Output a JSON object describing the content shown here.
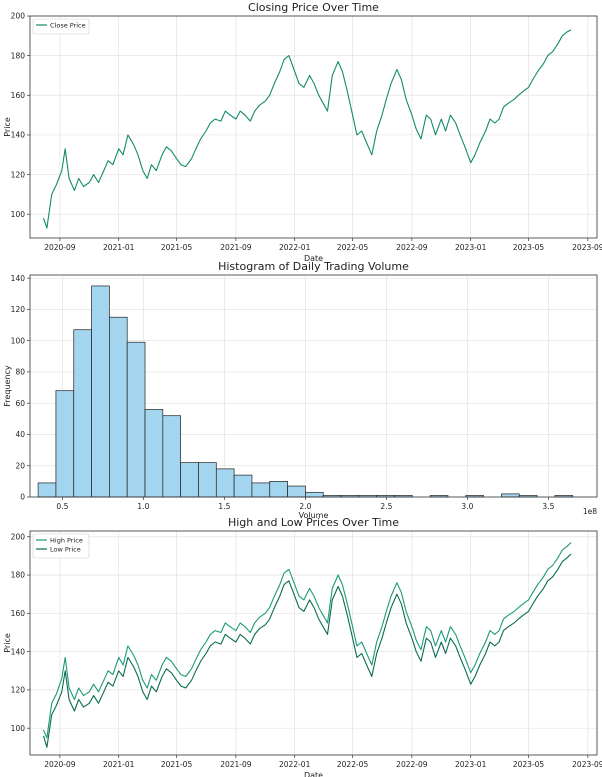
{
  "chart_data": [
    {
      "type": "line",
      "title": "Closing Price Over Time",
      "xlabel": "Date",
      "ylabel": "Price",
      "grid": true,
      "legend_placement": "top-left",
      "x_ticks": [
        "2020-09",
        "2021-01",
        "2021-05",
        "2021-09",
        "2022-01",
        "2022-05",
        "2022-09",
        "2023-01",
        "2023-05",
        "2023-09"
      ],
      "y_ticks": [
        100,
        120,
        140,
        160,
        180,
        200
      ],
      "xlim": [
        "2020-07-01",
        "2023-09-20"
      ],
      "ylim": [
        88,
        200
      ],
      "series": [
        {
          "name": "Close Price",
          "color": "#128a6c",
          "x": [
            "2020-07-29",
            "2020-08-05",
            "2020-08-15",
            "2020-08-25",
            "2020-09-05",
            "2020-09-12",
            "2020-09-20",
            "2020-10-01",
            "2020-10-10",
            "2020-10-20",
            "2020-11-01",
            "2020-11-10",
            "2020-11-20",
            "2020-12-01",
            "2020-12-10",
            "2020-12-20",
            "2021-01-01",
            "2021-01-10",
            "2021-01-20",
            "2021-02-01",
            "2021-02-10",
            "2021-02-20",
            "2021-03-01",
            "2021-03-10",
            "2021-03-20",
            "2021-04-01",
            "2021-04-10",
            "2021-04-20",
            "2021-05-01",
            "2021-05-10",
            "2021-05-20",
            "2021-06-01",
            "2021-06-10",
            "2021-06-20",
            "2021-07-01",
            "2021-07-10",
            "2021-07-20",
            "2021-08-01",
            "2021-08-10",
            "2021-08-20",
            "2021-09-01",
            "2021-09-10",
            "2021-09-20",
            "2021-10-01",
            "2021-10-10",
            "2021-10-20",
            "2021-11-01",
            "2021-11-10",
            "2021-11-20",
            "2021-12-01",
            "2021-12-10",
            "2021-12-20",
            "2022-01-01",
            "2022-01-10",
            "2022-01-20",
            "2022-02-01",
            "2022-02-10",
            "2022-02-20",
            "2022-03-01",
            "2022-03-10",
            "2022-03-20",
            "2022-04-01",
            "2022-04-10",
            "2022-04-20",
            "2022-05-01",
            "2022-05-10",
            "2022-05-20",
            "2022-06-01",
            "2022-06-10",
            "2022-06-20",
            "2022-07-01",
            "2022-07-10",
            "2022-07-20",
            "2022-08-01",
            "2022-08-10",
            "2022-08-20",
            "2022-09-01",
            "2022-09-10",
            "2022-09-20",
            "2022-10-01",
            "2022-10-10",
            "2022-10-20",
            "2022-11-01",
            "2022-11-10",
            "2022-11-20",
            "2022-12-01",
            "2022-12-10",
            "2022-12-20",
            "2023-01-01",
            "2023-01-10",
            "2023-01-20",
            "2023-02-01",
            "2023-02-10",
            "2023-02-20",
            "2023-03-01",
            "2023-03-10",
            "2023-03-20",
            "2023-04-01",
            "2023-04-10",
            "2023-04-20",
            "2023-05-01",
            "2023-05-10",
            "2023-05-20",
            "2023-06-01",
            "2023-06-10",
            "2023-06-20",
            "2023-07-01",
            "2023-07-10",
            "2023-07-20",
            "2023-07-28"
          ],
          "y": [
            98,
            93,
            110,
            115,
            122,
            133,
            118,
            112,
            118,
            114,
            116,
            120,
            116,
            122,
            127,
            125,
            133,
            130,
            140,
            135,
            130,
            122,
            118,
            125,
            122,
            130,
            134,
            132,
            128,
            125,
            124,
            128,
            133,
            138,
            142,
            146,
            148,
            147,
            152,
            150,
            148,
            152,
            150,
            147,
            152,
            155,
            157,
            160,
            166,
            172,
            178,
            180,
            172,
            166,
            164,
            170,
            166,
            160,
            156,
            152,
            170,
            177,
            172,
            162,
            150,
            140,
            142,
            135,
            130,
            142,
            150,
            158,
            166,
            173,
            168,
            158,
            150,
            143,
            138,
            150,
            148,
            140,
            148,
            142,
            150,
            146,
            140,
            134,
            126,
            130,
            136,
            142,
            148,
            146,
            148,
            154,
            156,
            158,
            160,
            162,
            164,
            168,
            172,
            176,
            180,
            182,
            186,
            190,
            192,
            193
          ]
        }
      ]
    },
    {
      "type": "bar",
      "title": "Histogram of Daily Trading Volume",
      "xlabel": "Volume",
      "ylabel": "Frequency",
      "x_offset_label": "1e8",
      "grid": true,
      "x_ticks": [
        "0.5",
        "1.0",
        "1.5",
        "2.0",
        "2.5",
        "3.0",
        "3.5"
      ],
      "y_ticks": [
        0,
        20,
        40,
        60,
        80,
        100,
        120,
        140
      ],
      "xlim": [
        0.3,
        3.8
      ],
      "ylim": [
        0,
        142
      ],
      "bar_color": "#a3d5ee",
      "bin_edges": [
        0.35,
        0.46,
        0.57,
        0.68,
        0.79,
        0.9,
        1.01,
        1.12,
        1.23,
        1.34,
        1.45,
        1.56,
        1.67,
        1.78,
        1.89,
        2.0,
        2.11,
        2.22,
        2.33,
        2.44,
        2.55,
        2.66,
        2.77,
        2.88,
        2.99,
        3.1,
        3.21,
        3.32,
        3.43,
        3.54,
        3.65
      ],
      "values": [
        9,
        68,
        107,
        135,
        115,
        99,
        56,
        52,
        22,
        22,
        18,
        14,
        9,
        10,
        7,
        3,
        1,
        1,
        1,
        1,
        1,
        0,
        1,
        0,
        1,
        0,
        2,
        1,
        0,
        1
      ]
    },
    {
      "type": "line",
      "title": "High and Low Prices Over Time",
      "xlabel": "Date",
      "ylabel": "Price",
      "grid": true,
      "legend_placement": "top-left",
      "x_ticks": [
        "2020-09",
        "2021-01",
        "2021-05",
        "2021-09",
        "2022-01",
        "2022-05",
        "2022-09",
        "2023-01",
        "2023-05",
        "2023-09"
      ],
      "y_ticks": [
        100,
        120,
        140,
        160,
        180,
        200
      ],
      "xlim": [
        "2020-07-01",
        "2023-09-20"
      ],
      "ylim": [
        86,
        203
      ],
      "series": [
        {
          "name": "High Price",
          "color": "#1a9a78",
          "x": [
            "2020-07-29",
            "2020-08-05",
            "2020-08-15",
            "2020-08-25",
            "2020-09-05",
            "2020-09-12",
            "2020-09-20",
            "2020-10-01",
            "2020-10-10",
            "2020-10-20",
            "2020-11-01",
            "2020-11-10",
            "2020-11-20",
            "2020-12-01",
            "2020-12-10",
            "2020-12-20",
            "2021-01-01",
            "2021-01-10",
            "2021-01-20",
            "2021-02-01",
            "2021-02-10",
            "2021-02-20",
            "2021-03-01",
            "2021-03-10",
            "2021-03-20",
            "2021-04-01",
            "2021-04-10",
            "2021-04-20",
            "2021-05-01",
            "2021-05-10",
            "2021-05-20",
            "2021-06-01",
            "2021-06-10",
            "2021-06-20",
            "2021-07-01",
            "2021-07-10",
            "2021-07-20",
            "2021-08-01",
            "2021-08-10",
            "2021-08-20",
            "2021-09-01",
            "2021-09-10",
            "2021-09-20",
            "2021-10-01",
            "2021-10-10",
            "2021-10-20",
            "2021-11-01",
            "2021-11-10",
            "2021-11-20",
            "2021-12-01",
            "2021-12-10",
            "2021-12-20",
            "2022-01-01",
            "2022-01-10",
            "2022-01-20",
            "2022-02-01",
            "2022-02-10",
            "2022-02-20",
            "2022-03-01",
            "2022-03-10",
            "2022-03-20",
            "2022-04-01",
            "2022-04-10",
            "2022-04-20",
            "2022-05-01",
            "2022-05-10",
            "2022-05-20",
            "2022-06-01",
            "2022-06-10",
            "2022-06-20",
            "2022-07-01",
            "2022-07-10",
            "2022-07-20",
            "2022-08-01",
            "2022-08-10",
            "2022-08-20",
            "2022-09-01",
            "2022-09-10",
            "2022-09-20",
            "2022-10-01",
            "2022-10-10",
            "2022-10-20",
            "2022-11-01",
            "2022-11-10",
            "2022-11-20",
            "2022-12-01",
            "2022-12-10",
            "2022-12-20",
            "2023-01-01",
            "2023-01-10",
            "2023-01-20",
            "2023-02-01",
            "2023-02-10",
            "2023-02-20",
            "2023-03-01",
            "2023-03-10",
            "2023-03-20",
            "2023-04-01",
            "2023-04-10",
            "2023-04-20",
            "2023-05-01",
            "2023-05-10",
            "2023-05-20",
            "2023-06-01",
            "2023-06-10",
            "2023-06-20",
            "2023-07-01",
            "2023-07-10",
            "2023-07-20",
            "2023-07-28"
          ],
          "y": [
            99,
            95,
            113,
            118,
            126,
            137,
            121,
            115,
            121,
            117,
            119,
            123,
            119,
            125,
            130,
            128,
            137,
            133,
            143,
            138,
            133,
            125,
            121,
            128,
            125,
            133,
            137,
            135,
            131,
            128,
            127,
            131,
            136,
            141,
            145,
            149,
            151,
            150,
            155,
            153,
            151,
            155,
            153,
            150,
            155,
            158,
            160,
            163,
            169,
            175,
            181,
            183,
            175,
            169,
            167,
            173,
            169,
            163,
            159,
            155,
            173,
            180,
            175,
            165,
            153,
            143,
            145,
            138,
            133,
            145,
            153,
            161,
            169,
            176,
            171,
            161,
            153,
            146,
            141,
            153,
            151,
            143,
            151,
            145,
            153,
            149,
            143,
            137,
            129,
            133,
            139,
            145,
            151,
            149,
            151,
            157,
            159,
            161,
            163,
            165,
            167,
            171,
            175,
            179,
            183,
            185,
            189,
            193,
            195,
            197
          ]
        },
        {
          "name": "Low Price",
          "color": "#0a6b52",
          "x": [
            "2020-07-29",
            "2020-08-05",
            "2020-08-15",
            "2020-08-25",
            "2020-09-05",
            "2020-09-12",
            "2020-09-20",
            "2020-10-01",
            "2020-10-10",
            "2020-10-20",
            "2020-11-01",
            "2020-11-10",
            "2020-11-20",
            "2020-12-01",
            "2020-12-10",
            "2020-12-20",
            "2021-01-01",
            "2021-01-10",
            "2021-01-20",
            "2021-02-01",
            "2021-02-10",
            "2021-02-20",
            "2021-03-01",
            "2021-03-10",
            "2021-03-20",
            "2021-04-01",
            "2021-04-10",
            "2021-04-20",
            "2021-05-01",
            "2021-05-10",
            "2021-05-20",
            "2021-06-01",
            "2021-06-10",
            "2021-06-20",
            "2021-07-01",
            "2021-07-10",
            "2021-07-20",
            "2021-08-01",
            "2021-08-10",
            "2021-08-20",
            "2021-09-01",
            "2021-09-10",
            "2021-09-20",
            "2021-10-01",
            "2021-10-10",
            "2021-10-20",
            "2021-11-01",
            "2021-11-10",
            "2021-11-20",
            "2021-12-01",
            "2021-12-10",
            "2021-12-20",
            "2022-01-01",
            "2022-01-10",
            "2022-01-20",
            "2022-02-01",
            "2022-02-10",
            "2022-02-20",
            "2022-03-01",
            "2022-03-10",
            "2022-03-20",
            "2022-04-01",
            "2022-04-10",
            "2022-04-20",
            "2022-05-01",
            "2022-05-10",
            "2022-05-20",
            "2022-06-01",
            "2022-06-10",
            "2022-06-20",
            "2022-07-01",
            "2022-07-10",
            "2022-07-20",
            "2022-08-01",
            "2022-08-10",
            "2022-08-20",
            "2022-09-01",
            "2022-09-10",
            "2022-09-20",
            "2022-10-01",
            "2022-10-10",
            "2022-10-20",
            "2022-11-01",
            "2022-11-10",
            "2022-11-20",
            "2022-12-01",
            "2022-12-10",
            "2022-12-20",
            "2023-01-01",
            "2023-01-10",
            "2023-01-20",
            "2023-02-01",
            "2023-02-10",
            "2023-02-20",
            "2023-03-01",
            "2023-03-10",
            "2023-03-20",
            "2023-04-01",
            "2023-04-10",
            "2023-04-20",
            "2023-05-01",
            "2023-05-10",
            "2023-05-20",
            "2023-06-01",
            "2023-06-10",
            "2023-06-20",
            "2023-07-01",
            "2023-07-10",
            "2023-07-20",
            "2023-07-28"
          ],
          "y": [
            96,
            90,
            107,
            112,
            119,
            130,
            115,
            109,
            115,
            111,
            113,
            117,
            113,
            119,
            124,
            122,
            130,
            127,
            137,
            132,
            127,
            119,
            115,
            122,
            119,
            127,
            131,
            129,
            125,
            122,
            121,
            125,
            130,
            135,
            139,
            143,
            145,
            144,
            149,
            147,
            145,
            149,
            147,
            144,
            149,
            152,
            154,
            157,
            163,
            169,
            175,
            177,
            169,
            163,
            161,
            167,
            163,
            157,
            153,
            149,
            167,
            174,
            169,
            159,
            147,
            137,
            139,
            132,
            127,
            139,
            147,
            155,
            163,
            170,
            165,
            155,
            147,
            140,
            135,
            147,
            145,
            137,
            145,
            139,
            147,
            143,
            137,
            131,
            123,
            127,
            133,
            139,
            145,
            143,
            145,
            151,
            153,
            155,
            157,
            159,
            161,
            165,
            169,
            173,
            177,
            179,
            183,
            187,
            189,
            191
          ]
        }
      ]
    }
  ]
}
